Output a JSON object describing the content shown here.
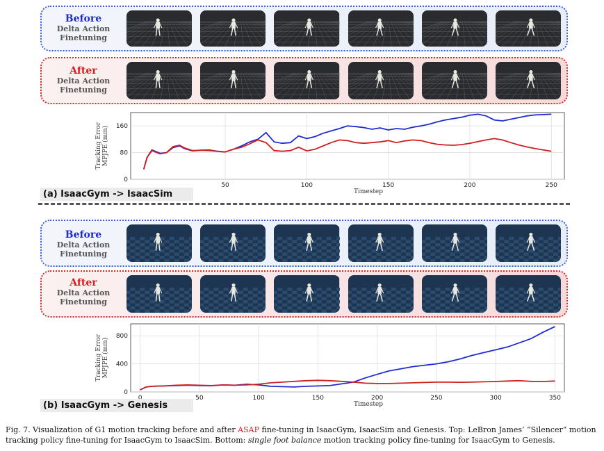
{
  "figure_top": {
    "before": {
      "title": "Before",
      "line1": "Delta Action",
      "line2": "Finetuning"
    },
    "after": {
      "title": "After",
      "line1": "Delta Action",
      "line2": "Finetuning"
    },
    "tag": "(a) IsaacGym -> IsaacSim"
  },
  "figure_bottom": {
    "before": {
      "title": "Before",
      "line1": "Delta Action",
      "line2": "Finetuning"
    },
    "after": {
      "title": "After",
      "line1": "Delta Action",
      "line2": "Finetuning"
    },
    "tag": "(b) IsaacGym -> Genesis"
  },
  "colors": {
    "before": "#1f2bd0",
    "after": "#d01f1f"
  },
  "chart_data": [
    {
      "type": "line",
      "ylabel": "Tracking Error\nMPJPE (mm)",
      "xlabel": "Timestep",
      "xlim": [
        -8,
        258
      ],
      "ylim": [
        0,
        200
      ],
      "xticks": [
        50,
        100,
        150,
        200,
        250
      ],
      "yticks": [
        0,
        80,
        160
      ],
      "grid": true,
      "series": [
        {
          "color": "#1f2bd0",
          "x": [
            0,
            2,
            5,
            8,
            10,
            14,
            18,
            22,
            25,
            30,
            35,
            40,
            45,
            50,
            55,
            60,
            65,
            70,
            75,
            80,
            85,
            90,
            95,
            100,
            105,
            110,
            115,
            120,
            125,
            130,
            135,
            140,
            145,
            150,
            155,
            160,
            165,
            170,
            175,
            180,
            185,
            190,
            195,
            200,
            205,
            210,
            215,
            220,
            225,
            230,
            235,
            240,
            245,
            250
          ],
          "y": [
            30,
            65,
            88,
            82,
            78,
            80,
            95,
            100,
            92,
            85,
            87,
            88,
            84,
            82,
            90,
            100,
            112,
            120,
            140,
            112,
            108,
            110,
            130,
            122,
            128,
            138,
            145,
            152,
            160,
            158,
            155,
            150,
            154,
            148,
            152,
            150,
            156,
            160,
            165,
            172,
            178,
            182,
            186,
            192,
            195,
            190,
            178,
            175,
            180,
            185,
            190,
            193,
            194,
            195
          ]
        },
        {
          "color": "#d01f1f",
          "x": [
            0,
            2,
            5,
            8,
            10,
            14,
            18,
            22,
            25,
            30,
            35,
            40,
            45,
            50,
            55,
            60,
            65,
            70,
            75,
            80,
            85,
            90,
            95,
            100,
            105,
            110,
            115,
            120,
            125,
            130,
            135,
            140,
            145,
            150,
            155,
            160,
            165,
            170,
            175,
            180,
            185,
            190,
            195,
            200,
            205,
            210,
            215,
            220,
            225,
            230,
            235,
            240,
            245,
            250
          ],
          "y": [
            30,
            65,
            86,
            80,
            76,
            80,
            98,
            102,
            94,
            86,
            87,
            86,
            84,
            82,
            90,
            96,
            106,
            118,
            110,
            86,
            84,
            86,
            96,
            85,
            90,
            100,
            110,
            118,
            116,
            110,
            108,
            110,
            112,
            116,
            110,
            115,
            118,
            116,
            110,
            105,
            103,
            102,
            104,
            108,
            113,
            118,
            122,
            118,
            110,
            103,
            97,
            92,
            88,
            84
          ]
        }
      ]
    },
    {
      "type": "line",
      "ylabel": "Tracking Error\nMPJPE (mm)",
      "xlabel": "Timestep",
      "xlim": [
        -8,
        358
      ],
      "ylim": [
        0,
        970
      ],
      "xticks": [
        0,
        50,
        100,
        150,
        200,
        250,
        300,
        350
      ],
      "yticks": [
        0,
        400,
        800
      ],
      "grid": true,
      "series": [
        {
          "color": "#1f2bd0",
          "x": [
            0,
            5,
            10,
            20,
            30,
            40,
            50,
            60,
            70,
            80,
            90,
            100,
            110,
            120,
            130,
            140,
            150,
            160,
            170,
            180,
            190,
            200,
            210,
            220,
            230,
            240,
            250,
            260,
            270,
            280,
            290,
            300,
            310,
            320,
            330,
            340,
            350
          ],
          "y": [
            30,
            70,
            80,
            85,
            90,
            95,
            90,
            88,
            100,
            95,
            110,
            100,
            80,
            75,
            70,
            80,
            85,
            90,
            115,
            140,
            200,
            250,
            300,
            330,
            360,
            380,
            400,
            430,
            470,
            520,
            560,
            600,
            640,
            700,
            760,
            850,
            930
          ]
        },
        {
          "color": "#d01f1f",
          "x": [
            0,
            5,
            10,
            20,
            30,
            40,
            50,
            60,
            70,
            80,
            90,
            100,
            110,
            120,
            130,
            140,
            150,
            160,
            170,
            180,
            190,
            200,
            210,
            220,
            230,
            240,
            250,
            260,
            270,
            280,
            290,
            300,
            310,
            320,
            330,
            340,
            350
          ],
          "y": [
            30,
            70,
            80,
            85,
            95,
            100,
            95,
            90,
            100,
            95,
            100,
            110,
            130,
            140,
            150,
            160,
            165,
            160,
            150,
            140,
            125,
            120,
            120,
            125,
            130,
            135,
            140,
            140,
            138,
            140,
            145,
            148,
            155,
            160,
            150,
            148,
            155
          ]
        }
      ]
    }
  ],
  "caption": {
    "prefix": "Fig. 7.   Visualization of G1 motion tracking before and after ",
    "asap": "ASAP",
    "mid": " fine-tuning in IsaacGym, IsaacSim and Genesis. Top: LeBron James’ “Silencer” motion tracking policy fine-tuning for IsaacGym to IsaacSim. Bottom: ",
    "em": "single foot balance",
    "suffix": " motion tracking policy fine-tuning for IsaacGym to Genesis."
  }
}
